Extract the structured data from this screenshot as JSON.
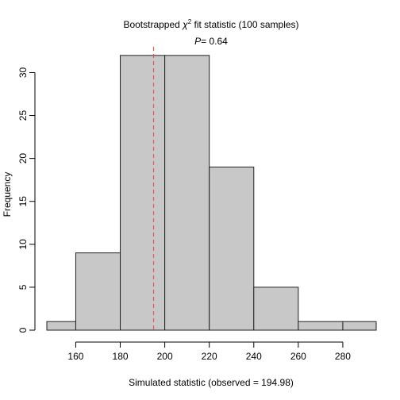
{
  "chart_data": {
    "type": "bar",
    "title_prefix": "Bootstrapped ",
    "title_symbol": "χ",
    "title_superscript": "2",
    "title_suffix": " fit statistic (100 samples)",
    "subtitle_label": "P",
    "subtitle_value": "= 0.64",
    "xlabel": "Simulated statistic (observed = 194.98)",
    "ylabel": "Frequency",
    "xlim": [
      147,
      295
    ],
    "ylim": [
      0,
      33
    ],
    "bins": [
      {
        "start": 140,
        "end": 160,
        "count": 1
      },
      {
        "start": 160,
        "end": 180,
        "count": 9
      },
      {
        "start": 180,
        "end": 200,
        "count": 32
      },
      {
        "start": 200,
        "end": 220,
        "count": 32
      },
      {
        "start": 220,
        "end": 240,
        "count": 19
      },
      {
        "start": 240,
        "end": 260,
        "count": 5
      },
      {
        "start": 260,
        "end": 280,
        "count": 1
      },
      {
        "start": 280,
        "end": 300,
        "count": 1
      }
    ],
    "x_ticks": [
      160,
      180,
      200,
      220,
      240,
      260,
      280
    ],
    "y_ticks": [
      0,
      5,
      10,
      15,
      20,
      25,
      30
    ],
    "observed_line": {
      "value": 194.98,
      "color": "#e8545a"
    },
    "bar_fill": "#c8c8c8",
    "bar_stroke": "#222222"
  }
}
